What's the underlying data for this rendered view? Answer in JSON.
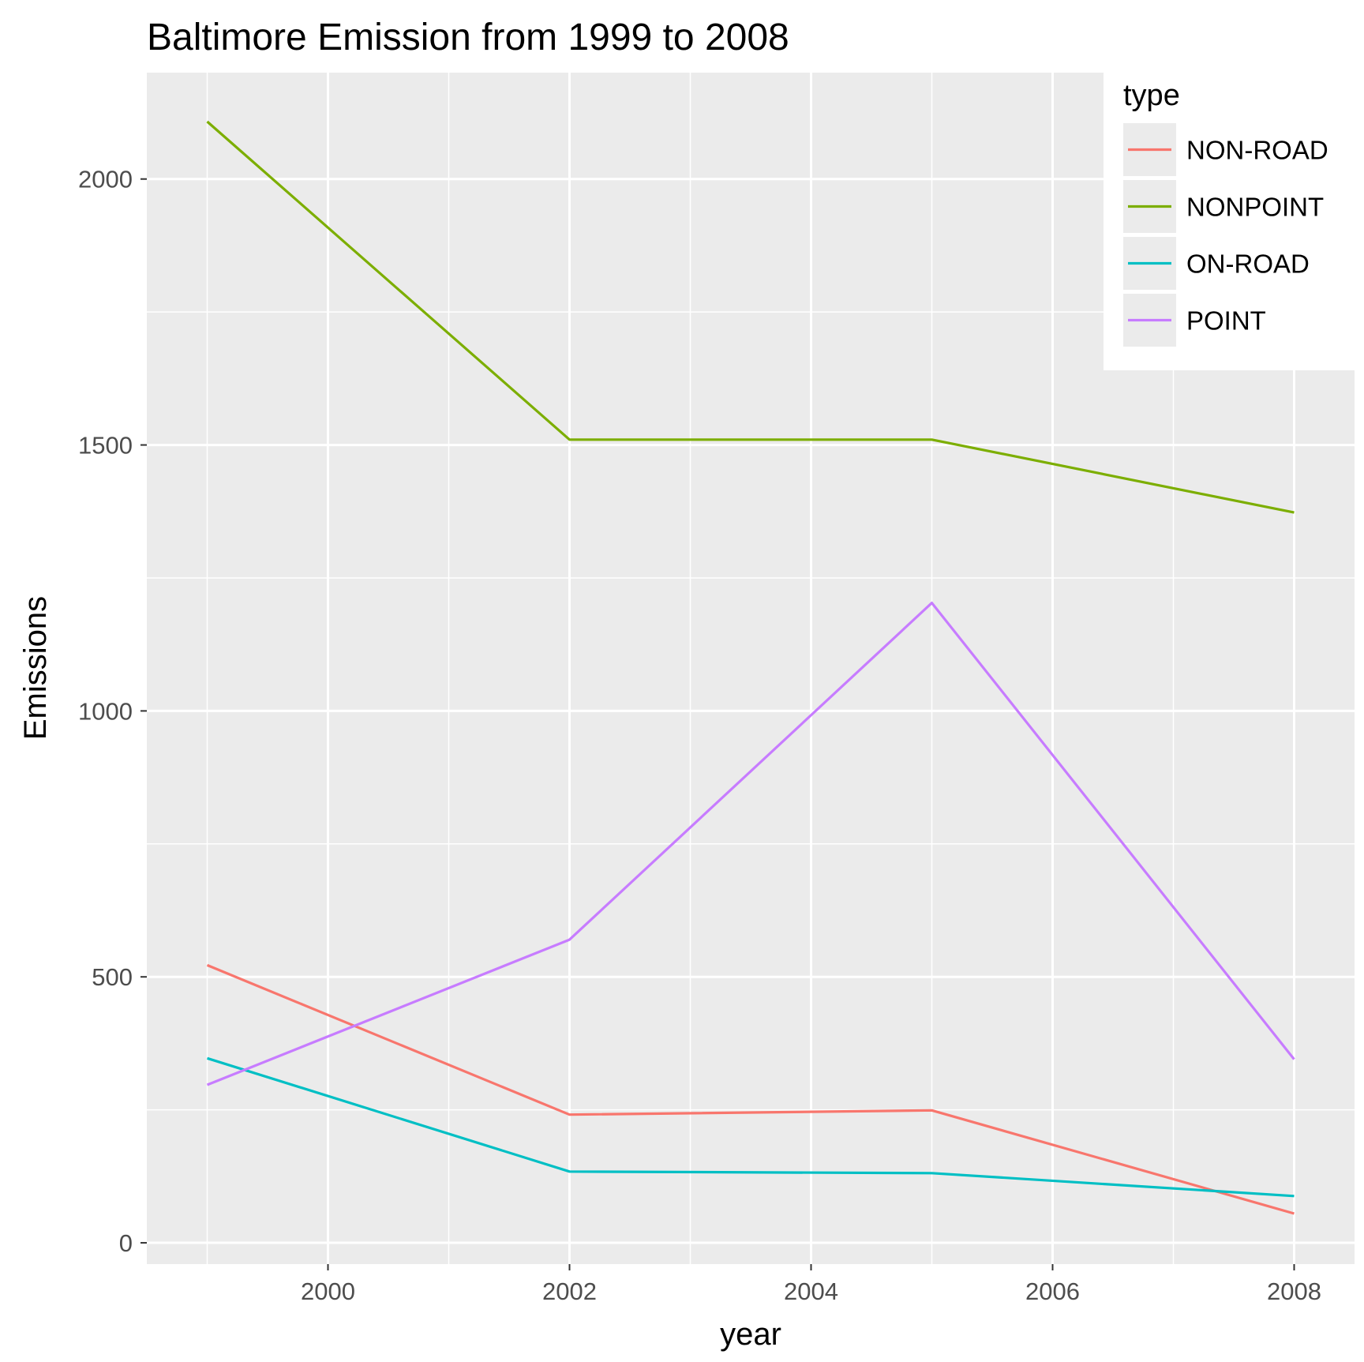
{
  "chart_data": {
    "type": "line",
    "title": "Baltimore Emission from 1999 to 2008",
    "xlabel": "year",
    "ylabel": "Emissions",
    "x": [
      1999,
      2002,
      2005,
      2008
    ],
    "xlim": [
      1998.5,
      2008.5
    ],
    "ylim": [
      -40,
      2200
    ],
    "x_ticks": [
      2000,
      2002,
      2004,
      2006,
      2008
    ],
    "y_ticks": [
      0,
      500,
      1000,
      1500,
      2000
    ],
    "x_tick_labels": [
      "2000",
      "2002",
      "2004",
      "2006",
      "2008"
    ],
    "y_tick_labels": [
      "0",
      "500",
      "1000",
      "1500",
      "2000"
    ],
    "grid": true,
    "legend": {
      "title": "type",
      "position": "top-right"
    },
    "series": [
      {
        "name": "NON-ROAD",
        "color": "#F8766D",
        "values": [
          522,
          241,
          249,
          55
        ]
      },
      {
        "name": "NONPOINT",
        "color": "#7CAE00",
        "values": [
          2108,
          1510,
          1510,
          1373
        ]
      },
      {
        "name": "ON-ROAD",
        "color": "#00BFC4",
        "values": [
          347,
          134,
          131,
          88
        ]
      },
      {
        "name": "POINT",
        "color": "#C77CFF",
        "values": [
          297,
          570,
          1203,
          345
        ]
      }
    ]
  }
}
